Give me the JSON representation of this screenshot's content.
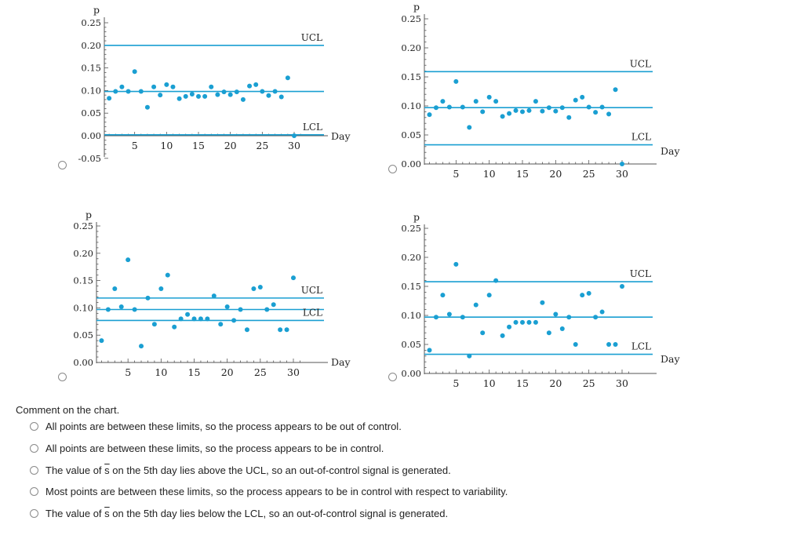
{
  "question": {
    "prompt": "Comment on the chart.",
    "options": [
      {
        "pre": "All points are between these limits, so the process appears to be out of control.",
        "sym": "",
        "post": ""
      },
      {
        "pre": "All points are between these limits, so the process appears to be in control.",
        "sym": "",
        "post": ""
      },
      {
        "pre": "The value of ",
        "sym": "s",
        "post": " on the 5th day lies above the UCL, so an out-of-control signal is generated."
      },
      {
        "pre": "Most points are between these limits, so the process appears to be in control with respect to variability.",
        "sym": "",
        "post": ""
      },
      {
        "pre": "The value of ",
        "sym": "s",
        "post": " on the 5th day lies below the LCL, so an out-of-control signal is generated."
      }
    ]
  },
  "colors": {
    "line": "#1a9fd2",
    "point": "#1a9fd2",
    "axis": "#555555",
    "text": "#222222"
  },
  "chart_data": [
    {
      "type": "scatter",
      "ylabel": "p",
      "xlabel": "Day",
      "ylim": [
        -0.05,
        0.25
      ],
      "yticks": [
        -0.05,
        0.0,
        0.05,
        0.1,
        0.15,
        0.2,
        0.25
      ],
      "ytick_labels": [
        "-0.05",
        "0.00",
        "0.05",
        "0.10",
        "0.15",
        "0.20",
        "0.25"
      ],
      "xticks": [
        5,
        10,
        15,
        20,
        25,
        30
      ],
      "hlines": [
        {
          "value": 0.2,
          "label": "UCL"
        },
        {
          "value": 0.098,
          "label": ""
        },
        {
          "value": 0.002,
          "label": "LCL"
        }
      ],
      "x": [
        1,
        2,
        3,
        4,
        5,
        6,
        7,
        8,
        9,
        10,
        11,
        12,
        13,
        14,
        15,
        16,
        17,
        18,
        19,
        20,
        21,
        22,
        23,
        24,
        25,
        26,
        27,
        28,
        29,
        30
      ],
      "y": [
        0.083,
        0.098,
        0.108,
        0.098,
        0.142,
        0.098,
        0.063,
        0.108,
        0.09,
        0.113,
        0.108,
        0.082,
        0.087,
        0.092,
        0.087,
        0.087,
        0.108,
        0.091,
        0.097,
        0.091,
        0.097,
        0.08,
        0.11,
        0.113,
        0.098,
        0.089,
        0.098,
        0.086,
        0.128,
        0.0
      ]
    },
    {
      "type": "scatter",
      "ylabel": "p",
      "xlabel": "Day",
      "ylim": [
        0.0,
        0.25
      ],
      "yticks": [
        0.0,
        0.05,
        0.1,
        0.15,
        0.2,
        0.25
      ],
      "ytick_labels": [
        "0.00",
        "0.05",
        "0.10",
        "0.15",
        "0.20",
        "0.25"
      ],
      "xticks": [
        5,
        10,
        15,
        20,
        25,
        30
      ],
      "hlines": [
        {
          "value": 0.159,
          "label": "UCL"
        },
        {
          "value": 0.097,
          "label": ""
        },
        {
          "value": 0.033,
          "label": "LCL"
        }
      ],
      "x": [
        1,
        2,
        3,
        4,
        5,
        6,
        7,
        8,
        9,
        10,
        11,
        12,
        13,
        14,
        15,
        16,
        17,
        18,
        19,
        20,
        21,
        22,
        23,
        24,
        25,
        26,
        27,
        28,
        29,
        30
      ],
      "y": [
        0.085,
        0.097,
        0.108,
        0.098,
        0.142,
        0.098,
        0.063,
        0.108,
        0.09,
        0.115,
        0.108,
        0.082,
        0.087,
        0.092,
        0.09,
        0.092,
        0.108,
        0.091,
        0.097,
        0.091,
        0.097,
        0.08,
        0.11,
        0.115,
        0.098,
        0.089,
        0.098,
        0.086,
        0.128,
        0.0
      ]
    },
    {
      "type": "scatter",
      "ylabel": "p",
      "xlabel": "Day",
      "ylim": [
        0.0,
        0.25
      ],
      "yticks": [
        0.0,
        0.05,
        0.1,
        0.15,
        0.2,
        0.25
      ],
      "ytick_labels": [
        "0.00",
        "0.05",
        "0.10",
        "0.15",
        "0.20",
        "0.25"
      ],
      "xticks": [
        5,
        10,
        15,
        20,
        25,
        30
      ],
      "hlines": [
        {
          "value": 0.118,
          "label": "UCL"
        },
        {
          "value": 0.097,
          "label": ""
        },
        {
          "value": 0.077,
          "label": "LCL"
        }
      ],
      "x": [
        1,
        2,
        3,
        4,
        5,
        6,
        7,
        8,
        9,
        10,
        11,
        12,
        13,
        14,
        15,
        16,
        17,
        18,
        19,
        20,
        21,
        22,
        23,
        24,
        25,
        26,
        27,
        28,
        29,
        30
      ],
      "y": [
        0.04,
        0.097,
        0.135,
        0.102,
        0.188,
        0.097,
        0.03,
        0.118,
        0.07,
        0.135,
        0.16,
        0.065,
        0.08,
        0.088,
        0.08,
        0.08,
        0.08,
        0.122,
        0.07,
        0.102,
        0.077,
        0.097,
        0.06,
        0.135,
        0.138,
        0.097,
        0.106,
        0.06,
        0.06,
        0.155
      ]
    },
    {
      "type": "scatter",
      "ylabel": "p",
      "xlabel": "Day",
      "ylim": [
        0.0,
        0.25
      ],
      "yticks": [
        0.0,
        0.05,
        0.1,
        0.15,
        0.2,
        0.25
      ],
      "ytick_labels": [
        "0.00",
        "0.05",
        "0.10",
        "0.15",
        "0.20",
        "0.25"
      ],
      "xticks": [
        5,
        10,
        15,
        20,
        25,
        30
      ],
      "hlines": [
        {
          "value": 0.158,
          "label": "UCL"
        },
        {
          "value": 0.097,
          "label": ""
        },
        {
          "value": 0.033,
          "label": "LCL"
        }
      ],
      "x": [
        1,
        2,
        3,
        4,
        5,
        6,
        7,
        8,
        9,
        10,
        11,
        12,
        13,
        14,
        15,
        16,
        17,
        18,
        19,
        20,
        21,
        22,
        23,
        24,
        25,
        26,
        27,
        28,
        29,
        30
      ],
      "y": [
        0.04,
        0.097,
        0.135,
        0.102,
        0.188,
        0.097,
        0.03,
        0.118,
        0.07,
        0.135,
        0.16,
        0.065,
        0.08,
        0.088,
        0.088,
        0.088,
        0.088,
        0.122,
        0.07,
        0.102,
        0.077,
        0.097,
        0.05,
        0.135,
        0.138,
        0.097,
        0.106,
        0.05,
        0.05,
        0.15
      ]
    }
  ]
}
